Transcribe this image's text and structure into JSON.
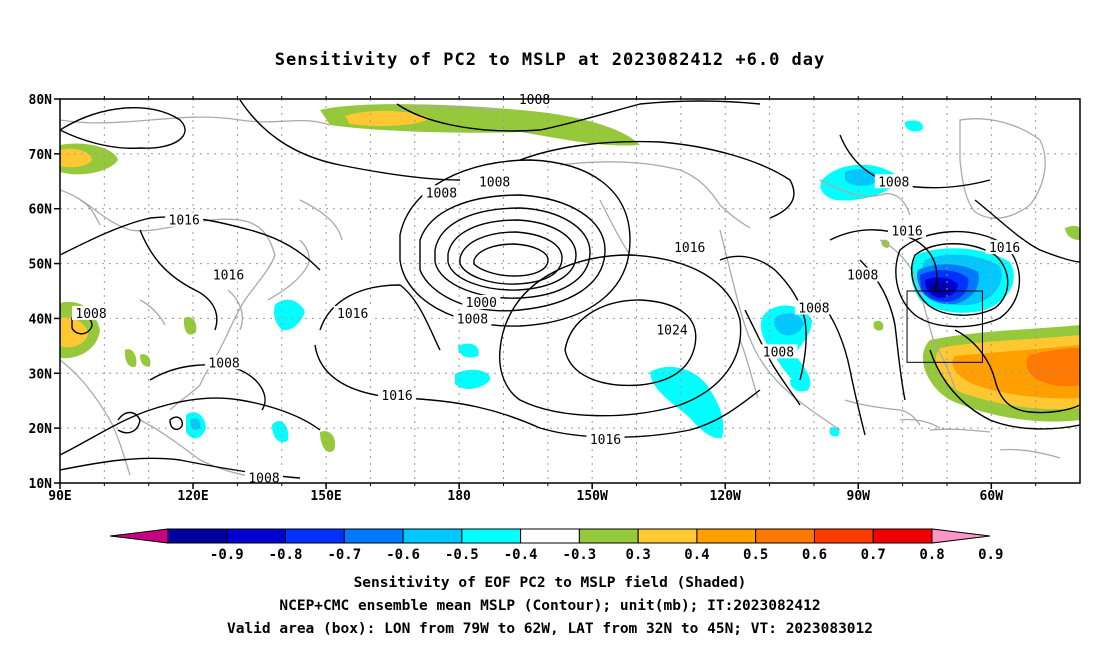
{
  "title": "Sensitivity of PC2 to MSLP at 2023082412 +6.0 day",
  "lat_labels": [
    "80N",
    "70N",
    "60N",
    "50N",
    "40N",
    "30N",
    "20N",
    "10N"
  ],
  "lon_labels": [
    "90E",
    "120E",
    "150E",
    "180",
    "150W",
    "120W",
    "90W",
    "60W"
  ],
  "contour_labels": [
    {
      "text": "1008",
      "lon": 197,
      "lat": 80
    },
    {
      "text": "1008",
      "lon": 176,
      "lat": 63
    },
    {
      "text": "1008",
      "lon": 188,
      "lat": 65
    },
    {
      "text": "1008",
      "lon": 278,
      "lat": 65
    },
    {
      "text": "1016",
      "lon": 118,
      "lat": 58
    },
    {
      "text": "1016",
      "lon": 128,
      "lat": 48
    },
    {
      "text": "1016",
      "lon": 156,
      "lat": 41
    },
    {
      "text": "1016",
      "lon": 232,
      "lat": 53
    },
    {
      "text": "1016",
      "lon": 281,
      "lat": 56
    },
    {
      "text": "1016",
      "lon": 303,
      "lat": 53
    },
    {
      "text": "1016",
      "lon": 166,
      "lat": 26
    },
    {
      "text": "1016",
      "lon": 213,
      "lat": 18
    },
    {
      "text": "1008",
      "lon": 97,
      "lat": 41
    },
    {
      "text": "1008",
      "lon": 127,
      "lat": 32
    },
    {
      "text": "1008",
      "lon": 260,
      "lat": 42
    },
    {
      "text": "1008",
      "lon": 252,
      "lat": 34
    },
    {
      "text": "1008",
      "lon": 271,
      "lat": 48
    },
    {
      "text": "1008",
      "lon": 183,
      "lat": 40
    },
    {
      "text": "1000",
      "lon": 185,
      "lat": 43
    },
    {
      "text": "1024",
      "lon": 228,
      "lat": 38
    },
    {
      "text": "1008",
      "lon": 136,
      "lat": 11
    }
  ],
  "colorbar": {
    "labels": [
      "-0.9",
      "-0.8",
      "-0.7",
      "-0.6",
      "-0.5",
      "-0.4",
      "-0.3",
      "0.3",
      "0.4",
      "0.5",
      "0.6",
      "0.7",
      "0.8",
      "0.9"
    ],
    "colors": [
      "#c80082",
      "#0000a0",
      "#0000d2",
      "#0032ff",
      "#0078ff",
      "#00c8ff",
      "#00ffff",
      "#ffffff",
      "#96c83c",
      "#ffc832",
      "#ffa000",
      "#ff7800",
      "#ff3c00",
      "#f00000",
      "#ff96c8"
    ]
  },
  "valid_box": {
    "lon_min": 281,
    "lon_max": 298,
    "lat_min": 32,
    "lat_max": 45
  },
  "captions": {
    "line1": "Sensitivity of EOF PC2 to MSLP field (Shaded)",
    "line2": "NCEP+CMC ensemble mean MSLP (Contour); unit(mb); IT:2023082412",
    "line3": "Valid area (box): LON from 79W to 62W, LAT from 32N to 45N; VT: 2023083012"
  }
}
